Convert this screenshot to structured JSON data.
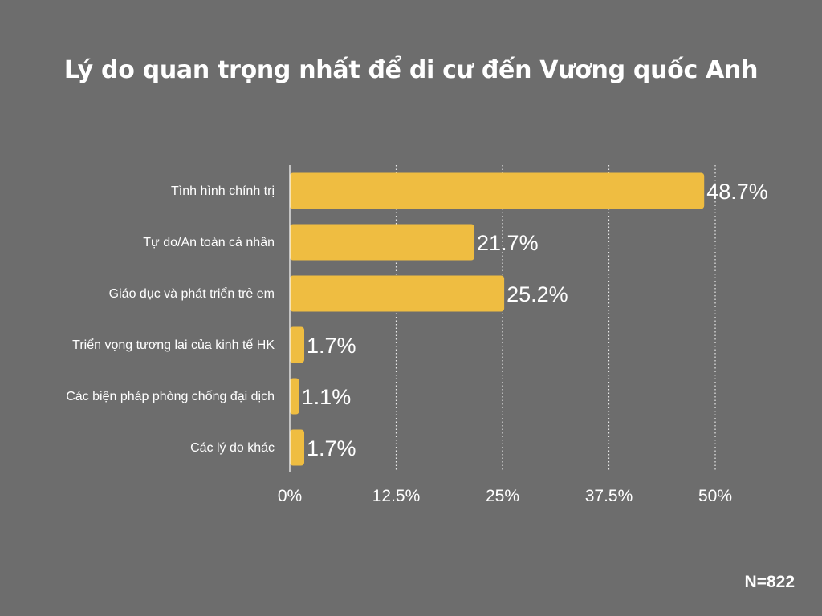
{
  "title": "Lý do quan trọng nhất để di cư đến Vương quốc Anh",
  "sample_size": "N=822",
  "colors": {
    "background": "#6d6d6d",
    "bar": "#efbd41",
    "text": "#ffffff",
    "gridline": "#ffffff"
  },
  "chart_data": {
    "type": "bar",
    "orientation": "horizontal",
    "title": "Lý do quan trọng nhất để di cư đến Vương quốc Anh",
    "categories": [
      "Tình hình chính trị",
      "Tự do/An toàn cá nhân",
      "Giáo dục và phát triển trẻ em",
      "Triển vọng tương lai của kinh tế HK",
      "Các biện pháp phòng chống đại dịch",
      "Các lý do khác"
    ],
    "values": [
      48.7,
      21.7,
      25.2,
      1.7,
      1.1,
      1.7
    ],
    "value_labels": [
      "48.7%",
      "21.7%",
      "25.2%",
      "1.7%",
      "1.1%",
      "1.7%"
    ],
    "xlim": [
      0,
      50
    ],
    "xticks": [
      0,
      12.5,
      25,
      37.5,
      50
    ],
    "xtick_labels": [
      "0%",
      "12.5%",
      "25%",
      "37.5%",
      "50%"
    ],
    "grid": "vertical dotted",
    "xlabel": "",
    "ylabel": ""
  }
}
